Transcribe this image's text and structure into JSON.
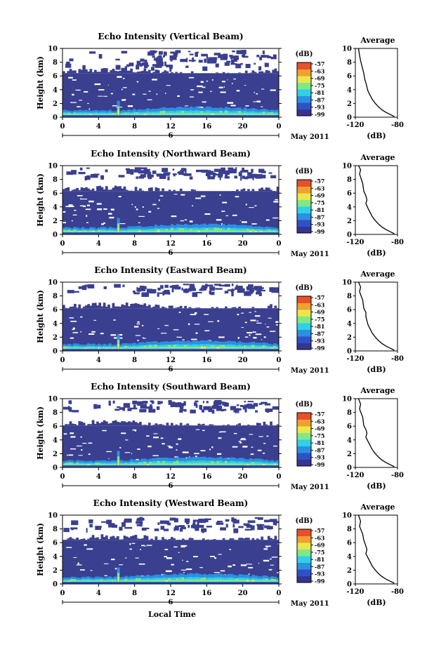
{
  "figure": {
    "xlabel": "Local Time",
    "date_label": "May 2011",
    "day_label": "6",
    "colorbar_unit": "(dB)",
    "profile_title": "Average",
    "profile_xlabel": "(dB)"
  },
  "chart_data": [
    {
      "type": "heatmap",
      "title": "Echo Intensity (Vertical Beam)",
      "ylabel": "Height (km)",
      "xticks": [
        "0",
        "4",
        "8",
        "12",
        "16",
        "20",
        "0"
      ],
      "yticks": [
        "0",
        "2",
        "4",
        "6",
        "8",
        "10"
      ],
      "xlim": [
        0,
        24
      ],
      "ylim": [
        0,
        10
      ],
      "colorbar_ticks": [
        "-57",
        "-63",
        "-69",
        "-75",
        "-81",
        "-87",
        "-93",
        "-99"
      ],
      "echo_top_km": 6.4,
      "upper_echo_band_km": [
        7.3,
        9.8
      ],
      "spike_hour": 6.2,
      "profile": {
        "title": "Average",
        "xlabel": "(dB)",
        "xlim": [
          -120,
          -80
        ],
        "xticks": [
          "-120",
          "-80"
        ],
        "ylim": [
          0,
          10
        ],
        "x": [
          -117,
          -116,
          -115,
          -113,
          -112,
          -111,
          -110,
          -109,
          -108,
          -106,
          -104,
          -101,
          -98,
          -95,
          -91,
          -87,
          -83
        ],
        "y": [
          10,
          9.0,
          8.2,
          7.0,
          6.4,
          5.5,
          5.0,
          4.4,
          3.8,
          3.2,
          2.6,
          2.0,
          1.5,
          1.1,
          0.7,
          0.4,
          0.1
        ]
      }
    },
    {
      "type": "heatmap",
      "title": "Echo Intensity (Northward Beam)",
      "ylabel": "Height (km)",
      "xticks": [
        "0",
        "4",
        "8",
        "12",
        "16",
        "20",
        "0"
      ],
      "yticks": [
        "0",
        "2",
        "4",
        "6",
        "8",
        "10"
      ],
      "xlim": [
        0,
        24
      ],
      "ylim": [
        0,
        10
      ],
      "colorbar_ticks": [
        "-57",
        "-63",
        "-69",
        "-75",
        "-81",
        "-87",
        "-93",
        "-99"
      ],
      "echo_top_km": 6.3,
      "upper_echo_band_km": [
        8.4,
        9.8
      ],
      "spike_hour": 6.2,
      "profile": {
        "title": "Average",
        "xlabel": "(dB)",
        "xlim": [
          -120,
          -80
        ],
        "xticks": [
          "-120",
          "-80"
        ],
        "ylim": [
          0,
          10
        ],
        "x": [
          -117,
          -115,
          -116,
          -113,
          -112,
          -110,
          -109,
          -110,
          -108,
          -106,
          -104,
          -101,
          -98,
          -95,
          -91,
          -87,
          -83
        ],
        "y": [
          10,
          9.4,
          8.8,
          7.4,
          6.3,
          5.6,
          5.0,
          4.5,
          3.8,
          3.2,
          2.6,
          2.0,
          1.5,
          1.1,
          0.7,
          0.4,
          0.1
        ]
      }
    },
    {
      "type": "heatmap",
      "title": "Echo Intensity (Eastward Beam)",
      "ylabel": "Height (km)",
      "xticks": [
        "0",
        "4",
        "8",
        "12",
        "16",
        "20",
        "0"
      ],
      "yticks": [
        "0",
        "2",
        "4",
        "6",
        "8",
        "10"
      ],
      "xlim": [
        0,
        24
      ],
      "ylim": [
        0,
        10
      ],
      "colorbar_ticks": [
        "-57",
        "-63",
        "-69",
        "-75",
        "-81",
        "-87",
        "-93",
        "-99"
      ],
      "echo_top_km": 6.2,
      "upper_echo_band_km": [
        8.5,
        9.8
      ],
      "spike_hour": 6.2,
      "profile": {
        "title": "Average",
        "xlabel": "(dB)",
        "xlim": [
          -120,
          -80
        ],
        "xticks": [
          "-120",
          "-80"
        ],
        "ylim": [
          0,
          10
        ],
        "x": [
          -117,
          -115,
          -116,
          -113,
          -112,
          -110,
          -110,
          -109,
          -108,
          -106,
          -104,
          -101,
          -98,
          -95,
          -91,
          -87,
          -83
        ],
        "y": [
          10,
          9.3,
          8.6,
          7.4,
          6.2,
          5.6,
          5.0,
          4.4,
          3.8,
          3.2,
          2.6,
          2.0,
          1.5,
          1.1,
          0.7,
          0.4,
          0.1
        ]
      }
    },
    {
      "type": "heatmap",
      "title": "Echo Intensity (Southward Beam)",
      "ylabel": "Height (km)",
      "xticks": [
        "0",
        "4",
        "8",
        "12",
        "16",
        "20",
        "0"
      ],
      "yticks": [
        "0",
        "2",
        "4",
        "6",
        "8",
        "10"
      ],
      "xlim": [
        0,
        24
      ],
      "ylim": [
        0,
        10
      ],
      "colorbar_ticks": [
        "-57",
        "-63",
        "-69",
        "-75",
        "-81",
        "-87",
        "-93",
        "-99"
      ],
      "echo_top_km": 6.1,
      "upper_echo_band_km": [
        8.3,
        9.8
      ],
      "spike_hour": 6.2,
      "profile": {
        "title": "Average",
        "xlabel": "(dB)",
        "xlim": [
          -120,
          -80
        ],
        "xticks": [
          "-120",
          "-80"
        ],
        "ylim": [
          0,
          10
        ],
        "x": [
          -117,
          -115,
          -116,
          -113,
          -112,
          -110,
          -109,
          -110,
          -108,
          -106,
          -104,
          -101,
          -98,
          -95,
          -91,
          -87,
          -83
        ],
        "y": [
          10,
          9.2,
          8.5,
          7.3,
          6.1,
          5.5,
          5.0,
          4.4,
          3.8,
          3.2,
          2.6,
          2.0,
          1.5,
          1.1,
          0.7,
          0.4,
          0.1
        ]
      }
    },
    {
      "type": "heatmap",
      "title": "Echo Intensity (Westward Beam)",
      "ylabel": "Height (km)",
      "xticks": [
        "0",
        "4",
        "8",
        "12",
        "16",
        "20",
        "0"
      ],
      "yticks": [
        "0",
        "2",
        "4",
        "6",
        "8",
        "10"
      ],
      "xlim": [
        0,
        24
      ],
      "ylim": [
        0,
        10
      ],
      "colorbar_ticks": [
        "-57",
        "-63",
        "-69",
        "-75",
        "-81",
        "-87",
        "-93",
        "-99"
      ],
      "echo_top_km": 6.4,
      "upper_echo_band_km": [
        8.0,
        9.8
      ],
      "spike_hour": 6.2,
      "profile": {
        "title": "Average",
        "xlabel": "(dB)",
        "xlim": [
          -120,
          -80
        ],
        "xticks": [
          "-120",
          "-80"
        ],
        "ylim": [
          0,
          10
        ],
        "x": [
          -117,
          -115,
          -116,
          -113,
          -112,
          -110,
          -109,
          -110,
          -108,
          -106,
          -104,
          -101,
          -98,
          -95,
          -91,
          -87,
          -83
        ],
        "y": [
          10,
          9.1,
          8.4,
          7.2,
          6.4,
          5.5,
          5.0,
          4.4,
          3.8,
          3.2,
          2.6,
          2.0,
          1.5,
          1.1,
          0.7,
          0.4,
          0.1
        ]
      }
    }
  ],
  "colors": {
    "background_echo": "#3a3f8f",
    "colormap": [
      "#35358f",
      "#3050c8",
      "#2d8fe0",
      "#2fd0e8",
      "#7fe88a",
      "#e8e84a",
      "#f0a030",
      "#e8502a"
    ]
  }
}
